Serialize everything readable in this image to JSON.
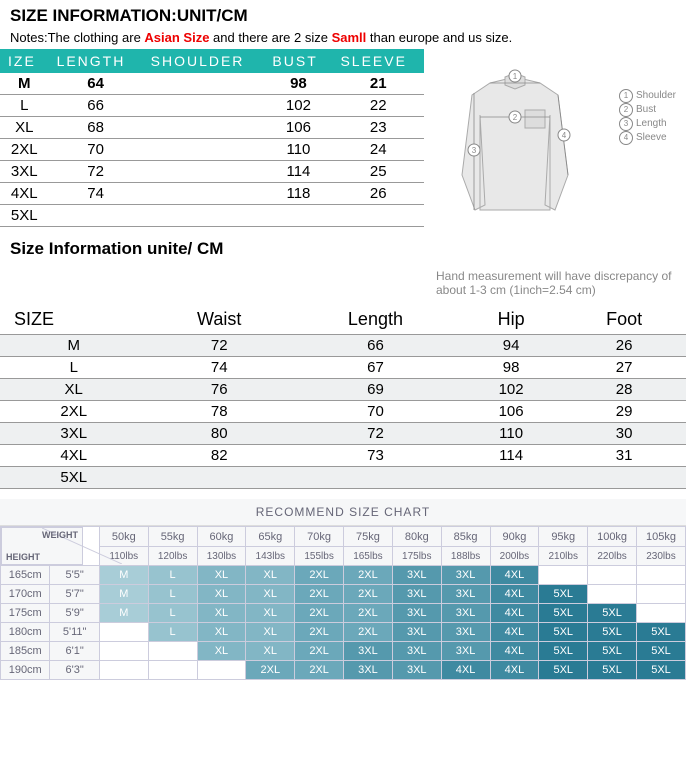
{
  "title": "SIZE INFORMATION:UNIT/CM",
  "notes": {
    "prefix": "Notes:The clothing are ",
    "asian": "Asian Size",
    "mid": " and there are 2 size ",
    "small": "Samll",
    "suffix": " than europe and us size."
  },
  "table1": {
    "headers": [
      "IZE",
      "LENGTH",
      "SHOULDER",
      "BUST",
      "SLEEVE"
    ],
    "rows": [
      [
        "M",
        "64",
        "",
        "98",
        "21"
      ],
      [
        "L",
        "66",
        "",
        "102",
        "22"
      ],
      [
        "XL",
        "68",
        "",
        "106",
        "23"
      ],
      [
        "2XL",
        "70",
        "",
        "110",
        "24"
      ],
      [
        "3XL",
        "72",
        "",
        "114",
        "25"
      ],
      [
        "4XL",
        "74",
        "",
        "118",
        "26"
      ],
      [
        "5XL",
        "",
        "",
        "",
        ""
      ]
    ]
  },
  "legend": [
    {
      "num": "1",
      "label": "Shoulder"
    },
    {
      "num": "2",
      "label": "Bust"
    },
    {
      "num": "3",
      "label": "Length"
    },
    {
      "num": "4",
      "label": "Sleeve"
    }
  ],
  "hand_note": "Hand measurement will have discrepancy of about 1-3 cm   (1inch=2.54 cm)",
  "subtitle": "Size Information unite/ CM",
  "table2": {
    "headers": [
      "SIZE",
      "Waist",
      "Length",
      "Hip",
      "Foot"
    ],
    "rows": [
      [
        "M",
        "72",
        "66",
        "94",
        "26"
      ],
      [
        "L",
        "74",
        "67",
        "98",
        "27"
      ],
      [
        "XL",
        "76",
        "69",
        "102",
        "28"
      ],
      [
        "2XL",
        "78",
        "70",
        "106",
        "29"
      ],
      [
        "3XL",
        "80",
        "72",
        "110",
        "30"
      ],
      [
        "4XL",
        "82",
        "73",
        "114",
        "31"
      ],
      [
        "5XL",
        "",
        "",
        "",
        ""
      ]
    ]
  },
  "recommend_title": "RECOMMEND SIZE CHART",
  "table3": {
    "weights_kg": [
      "50kg",
      "55kg",
      "60kg",
      "65kg",
      "70kg",
      "75kg",
      "80kg",
      "85kg",
      "90kg",
      "95kg",
      "100kg",
      "105kg"
    ],
    "weights_lbs": [
      "110lbs",
      "120lbs",
      "130lbs",
      "143lbs",
      "155lbs",
      "165lbs",
      "175lbs",
      "188lbs",
      "200lbs",
      "210lbs",
      "220lbs",
      "230lbs"
    ],
    "heights": [
      {
        "cm": "165cm",
        "ft": "5'5\"",
        "cells": [
          "M",
          "L",
          "XL",
          "XL",
          "2XL",
          "2XL",
          "3XL",
          "3XL",
          "4XL",
          "",
          "",
          ""
        ]
      },
      {
        "cm": "170cm",
        "ft": "5'7\"",
        "cells": [
          "M",
          "L",
          "XL",
          "XL",
          "2XL",
          "2XL",
          "3XL",
          "3XL",
          "4XL",
          "5XL",
          "",
          ""
        ]
      },
      {
        "cm": "175cm",
        "ft": "5'9\"",
        "cells": [
          "M",
          "L",
          "XL",
          "XL",
          "2XL",
          "2XL",
          "3XL",
          "3XL",
          "4XL",
          "5XL",
          "5XL",
          ""
        ]
      },
      {
        "cm": "180cm",
        "ft": "5'11\"",
        "cells": [
          "",
          "L",
          "XL",
          "XL",
          "2XL",
          "2XL",
          "3XL",
          "3XL",
          "4XL",
          "5XL",
          "5XL",
          "5XL"
        ]
      },
      {
        "cm": "185cm",
        "ft": "6'1\"",
        "cells": [
          "",
          "",
          "XL",
          "XL",
          "2XL",
          "3XL",
          "3XL",
          "3XL",
          "4XL",
          "5XL",
          "5XL",
          "5XL"
        ]
      },
      {
        "cm": "190cm",
        "ft": "6'3\"",
        "cells": [
          "",
          "",
          "",
          "2XL",
          "2XL",
          "3XL",
          "3XL",
          "4XL",
          "4XL",
          "5XL",
          "5XL",
          "5XL"
        ]
      }
    ],
    "colors": {
      "M": "#a8cdd7",
      "L": "#97c3cf",
      "XL": "#82b6c5",
      "2XL": "#6ba8ba",
      "3XL": "#5599ad",
      "4XL": "#3f8aa1",
      "5XL": "#2a7b94",
      "": "#ffffff"
    },
    "corner_weight": "WEIGHT",
    "corner_height": "HEIGHT"
  }
}
